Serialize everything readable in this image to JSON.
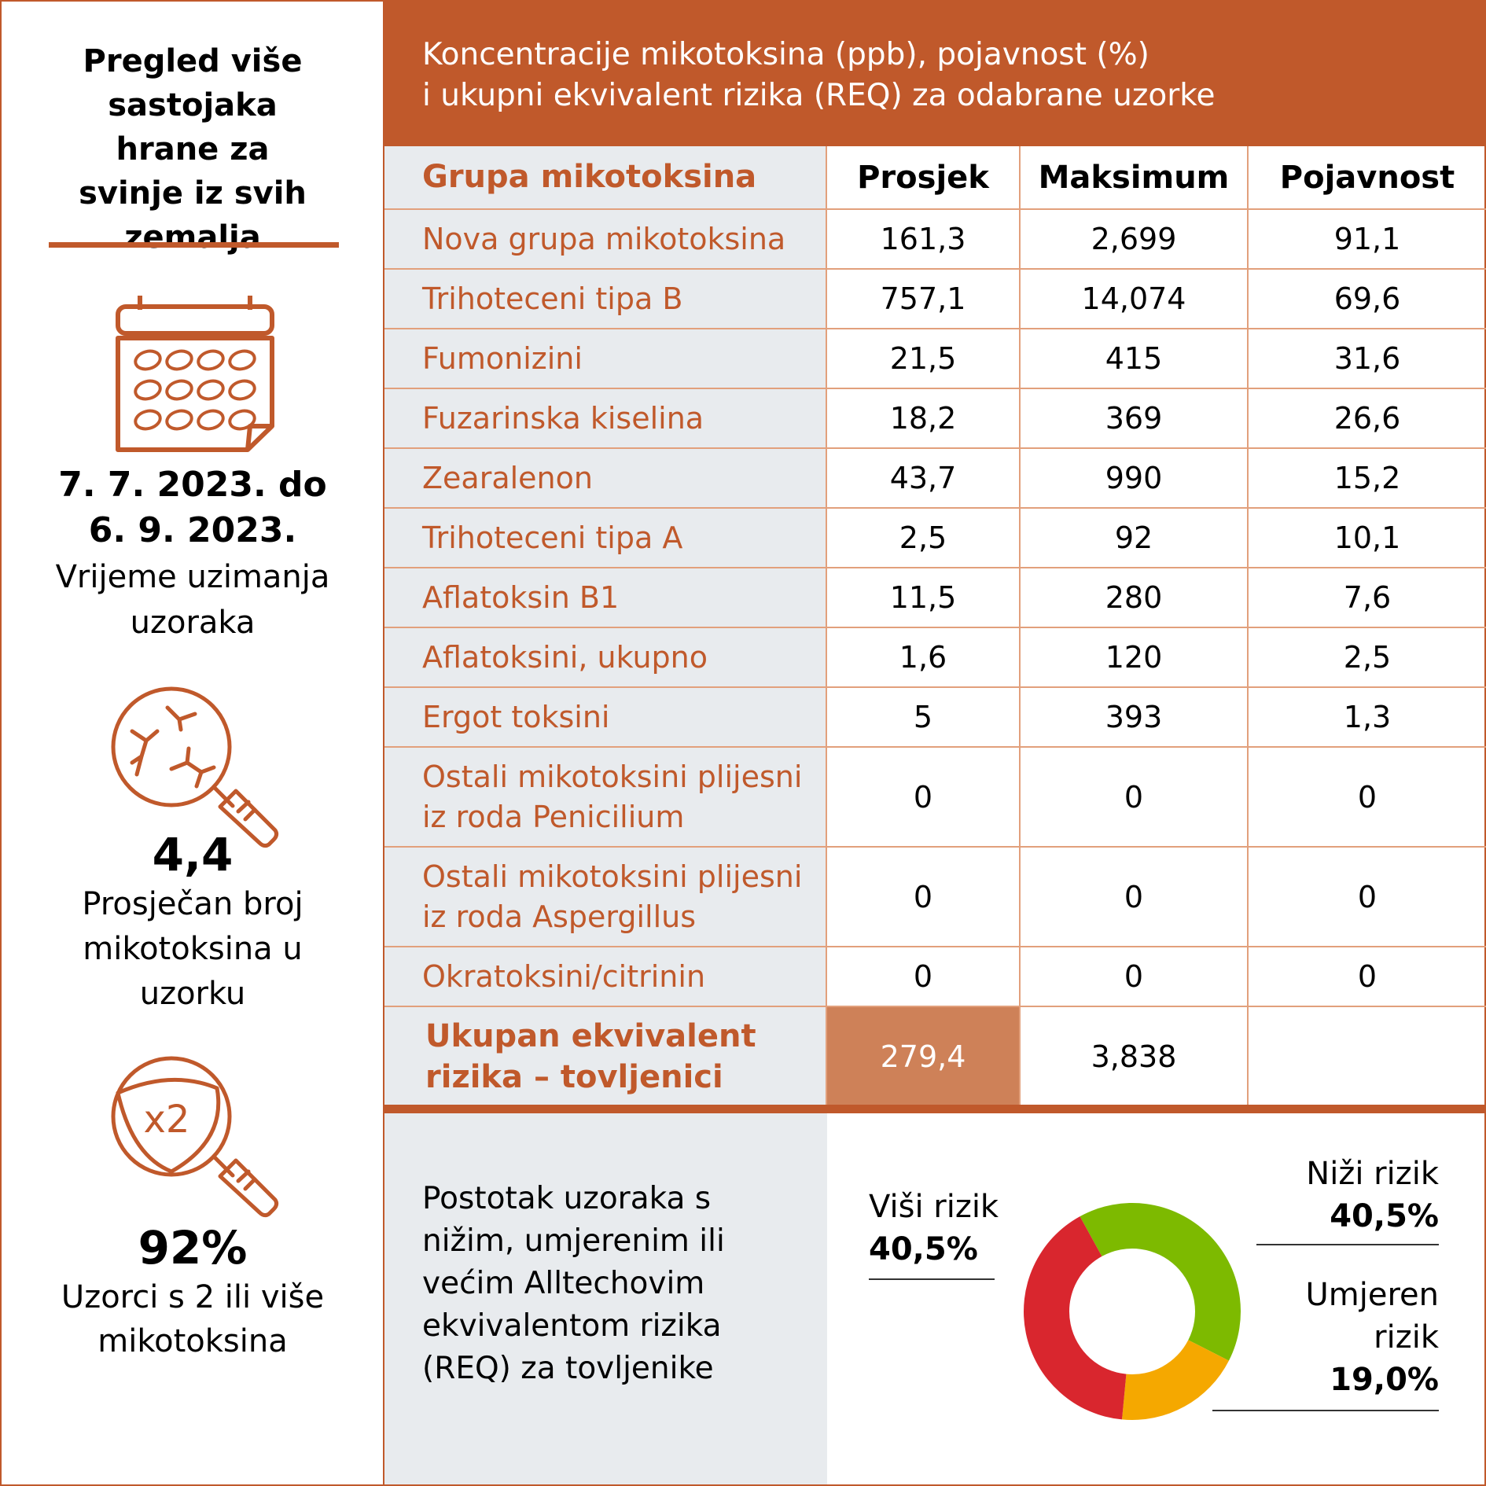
{
  "left_panel": {
    "title": "Pregled više sastojaka hrane za svinje iz svih zemalja",
    "date_range_line1": "7. 7. 2023. do",
    "date_range_line2": "6. 9. 2023.",
    "date_label": "Vrijeme uzimanja uzoraka",
    "stat1_value": "4,4",
    "stat1_label": "Prosječan broj mikotoksina u uzorku",
    "stat2_value": "92%",
    "stat2_label": "Uzorci s 2 ili više mikotoksina",
    "icon_x2_text": "x2",
    "icons": [
      "calendar-icon",
      "magnifier-mold-icon",
      "magnifier-x2-icon"
    ]
  },
  "header": {
    "line1": "Koncentracije mikotoksina (ppb), pojavnost (%)",
    "line2": "i ukupni ekvivalent rizika (REQ) za odabrane uzorke"
  },
  "table": {
    "columns": [
      "Grupa mikotoksina",
      "Prosjek",
      "Maksimum",
      "Pojavnost"
    ],
    "rows": [
      {
        "name": "Nova grupa mikotoksina",
        "avg": "161,3",
        "max": "2,699",
        "occ": "91,1"
      },
      {
        "name": "Trihoteceni tipa B",
        "avg": "757,1",
        "max": "14,074",
        "occ": "69,6"
      },
      {
        "name": "Fumonizini",
        "avg": "21,5",
        "max": "415",
        "occ": "31,6"
      },
      {
        "name": "Fuzarinska kiselina",
        "avg": "18,2",
        "max": "369",
        "occ": "26,6"
      },
      {
        "name": "Zearalenon",
        "avg": "43,7",
        "max": "990",
        "occ": "15,2"
      },
      {
        "name": "Trihoteceni tipa A",
        "avg": "2,5",
        "max": "92",
        "occ": "10,1"
      },
      {
        "name": "Aflatoksin B1",
        "avg": "11,5",
        "max": "280",
        "occ": "7,6"
      },
      {
        "name": "Aflatoksini, ukupno",
        "avg": "1,6",
        "max": "120",
        "occ": "2,5"
      },
      {
        "name": "Ergot toksini",
        "avg": "5",
        "max": "393",
        "occ": "1,3"
      },
      {
        "name_line1": "Ostali mikotoksini plijesni",
        "name_line2": "iz roda Penicilium",
        "avg": "0",
        "max": "0",
        "occ": "0"
      },
      {
        "name_line1": "Ostali mikotoksini plijesni",
        "name_line2": "iz roda Aspergillus",
        "avg": "0",
        "max": "0",
        "occ": "0"
      },
      {
        "name": "Okratoksini/citrinin",
        "avg": "0",
        "max": "0",
        "occ": "0"
      }
    ],
    "total": {
      "label_line1": "Ukupan ekvivalent",
      "label_line2": "rizika – tovljenici",
      "avg": "279,4",
      "max": "3,838",
      "occ": ""
    }
  },
  "bottom": {
    "description": "Postotak uzoraka s nižim, umjerenim ili većim Alltechovim ekvivalentom rizika (REQ) za tovljenike",
    "legend": {
      "high_label": "Viši rizik",
      "high_value": "40,5%",
      "low_label": "Niži rizik",
      "low_value": "40,5%",
      "moderate_label_line1": "Umjeren",
      "moderate_label_line2": "rizik",
      "moderate_value": "19,0%"
    }
  },
  "chart_data": {
    "type": "pie",
    "donut": true,
    "categories": [
      "Niži rizik",
      "Umjeren rizik",
      "Viši rizik"
    ],
    "values": [
      40.5,
      19.0,
      40.5
    ],
    "colors": [
      "#7DBA00",
      "#F5A800",
      "#D9262E"
    ]
  },
  "colors": {
    "accent": "#C0592B",
    "row_label_bg": "#E8EBEE",
    "highlight_cell": "#CE8158"
  }
}
